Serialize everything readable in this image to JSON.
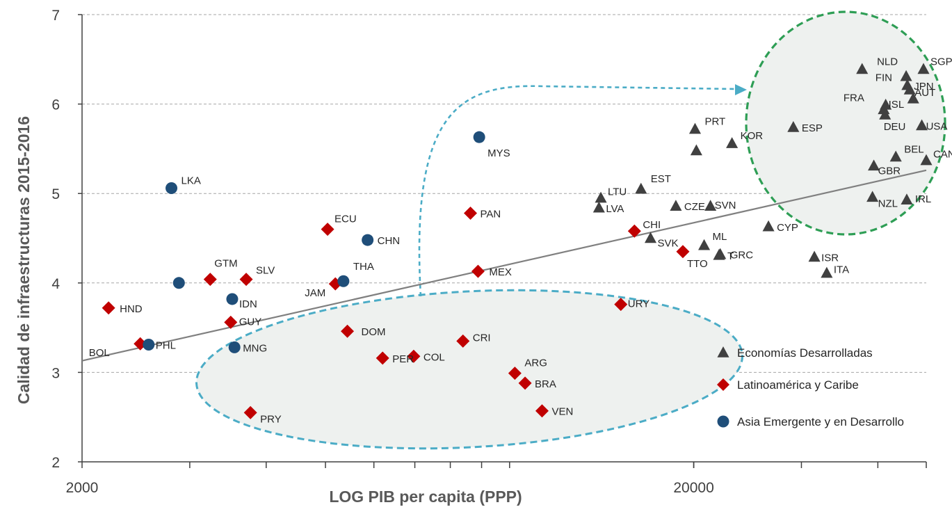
{
  "chart_data": {
    "type": "scatter",
    "xlabel": "LOG PIB per capita (PPP)",
    "ylabel": "Calidad de infraestructuras 2015-2016",
    "x_scale": "log",
    "xlim": [
      2000,
      48000
    ],
    "ylim": [
      2,
      7
    ],
    "x_ticks": [
      2000,
      20000
    ],
    "y_ticks": [
      2,
      3,
      4,
      5,
      6,
      7
    ],
    "grid": "horizontal-dashed",
    "legend_position": "bottom-right",
    "colors": {
      "dev": "#404040",
      "lat": "#c00000",
      "asia": "#1f4e79",
      "trend": "#808080",
      "blue_dash": "#4bacc6",
      "green_dash": "#2e9e55"
    },
    "trendline": {
      "x": [
        2000,
        48000
      ],
      "y": [
        3.13,
        5.26
      ]
    },
    "series": [
      {
        "name": "Economías Desarrolladas",
        "key": "dev",
        "marker": "triangle",
        "points": [
          {
            "label": "PRT",
            "x": 20100,
            "y": 5.72
          },
          {
            "label": "",
            "x": 20200,
            "y": 5.48
          },
          {
            "label": "KOR",
            "x": 23100,
            "y": 5.56
          },
          {
            "label": "EST",
            "x": 16400,
            "y": 5.05
          },
          {
            "label": "LTU",
            "x": 14100,
            "y": 4.95
          },
          {
            "label": "LVA",
            "x": 14000,
            "y": 4.84
          },
          {
            "label": "CZE",
            "x": 18700,
            "y": 4.86
          },
          {
            "label": "SVN",
            "x": 21300,
            "y": 4.86
          },
          {
            "label": "SVK",
            "x": 17000,
            "y": 4.5
          },
          {
            "label": "ML",
            "x": 20800,
            "y": 4.42
          },
          {
            "label": "T",
            "x": 22000,
            "y": 4.31
          },
          {
            "label": "GRC",
            "x": 22100,
            "y": 4.32
          },
          {
            "label": "CYP",
            "x": 26500,
            "y": 4.63
          },
          {
            "label": "ISR",
            "x": 31500,
            "y": 4.29
          },
          {
            "label": "ITA",
            "x": 33000,
            "y": 4.11
          },
          {
            "label": "ESP",
            "x": 29100,
            "y": 5.74
          },
          {
            "label": "",
            "x": 37700,
            "y": 6.39
          },
          {
            "label": "NLD",
            "x": 44500,
            "y": 6.31
          },
          {
            "label": "SGP",
            "x": 47500,
            "y": 6.39
          },
          {
            "label": "FIN",
            "x": 44700,
            "y": 6.21
          },
          {
            "label": "JPN",
            "x": 45100,
            "y": 6.16
          },
          {
            "label": "AUT",
            "x": 45700,
            "y": 6.06
          },
          {
            "label": "FRA",
            "x": 40900,
            "y": 5.94
          },
          {
            "label": "ISL",
            "x": 41200,
            "y": 5.99
          },
          {
            "label": "DEU",
            "x": 41100,
            "y": 5.88
          },
          {
            "label": "USA",
            "x": 47200,
            "y": 5.76
          },
          {
            "label": "BEL",
            "x": 42800,
            "y": 5.41
          },
          {
            "label": "GBR",
            "x": 39400,
            "y": 5.31
          },
          {
            "label": "CAN",
            "x": 48000,
            "y": 5.37
          },
          {
            "label": "NZL",
            "x": 39200,
            "y": 4.96
          },
          {
            "label": "IRL",
            "x": 44600,
            "y": 4.93
          }
        ]
      },
      {
        "name": "Latinoamérica y Caribe",
        "key": "lat",
        "marker": "diamond",
        "points": [
          {
            "label": "HND",
            "x": 2210,
            "y": 3.72
          },
          {
            "label": "BOL",
            "x": 2490,
            "y": 3.32
          },
          {
            "label": "GTM",
            "x": 3240,
            "y": 4.04
          },
          {
            "label": "SLV",
            "x": 3710,
            "y": 4.04
          },
          {
            "label": "GUY",
            "x": 3500,
            "y": 3.56
          },
          {
            "label": "PRY",
            "x": 3770,
            "y": 2.55
          },
          {
            "label": "ECU",
            "x": 5040,
            "y": 4.6
          },
          {
            "label": "JAM",
            "x": 5190,
            "y": 3.99
          },
          {
            "label": "DOM",
            "x": 5430,
            "y": 3.46
          },
          {
            "label": "PER",
            "x": 6200,
            "y": 3.16
          },
          {
            "label": "COL",
            "x": 6970,
            "y": 3.18
          },
          {
            "label": "PAN",
            "x": 8630,
            "y": 4.78
          },
          {
            "label": "MEX",
            "x": 8880,
            "y": 4.13
          },
          {
            "label": "CRI",
            "x": 8390,
            "y": 3.35
          },
          {
            "label": "ARG",
            "x": 10200,
            "y": 2.99
          },
          {
            "label": "BRA",
            "x": 10600,
            "y": 2.88
          },
          {
            "label": "VEN",
            "x": 11300,
            "y": 2.57
          },
          {
            "label": "URY",
            "x": 15200,
            "y": 3.76
          },
          {
            "label": "CHI",
            "x": 16000,
            "y": 4.58
          },
          {
            "label": "TTO",
            "x": 19200,
            "y": 4.35
          }
        ]
      },
      {
        "name": "Asia Emergente y en Desarrollo",
        "key": "asia",
        "marker": "circle",
        "points": [
          {
            "label": "LKA",
            "x": 2800,
            "y": 5.06
          },
          {
            "label": "",
            "x": 2880,
            "y": 4.0
          },
          {
            "label": "PHL",
            "x": 2570,
            "y": 3.31
          },
          {
            "label": "IDN",
            "x": 3520,
            "y": 3.82
          },
          {
            "label": "MNG",
            "x": 3550,
            "y": 3.28
          },
          {
            "label": "CHN",
            "x": 5860,
            "y": 4.48
          },
          {
            "label": "THA",
            "x": 5350,
            "y": 4.02
          },
          {
            "label": "MYS",
            "x": 8920,
            "y": 5.63
          }
        ]
      }
    ]
  }
}
